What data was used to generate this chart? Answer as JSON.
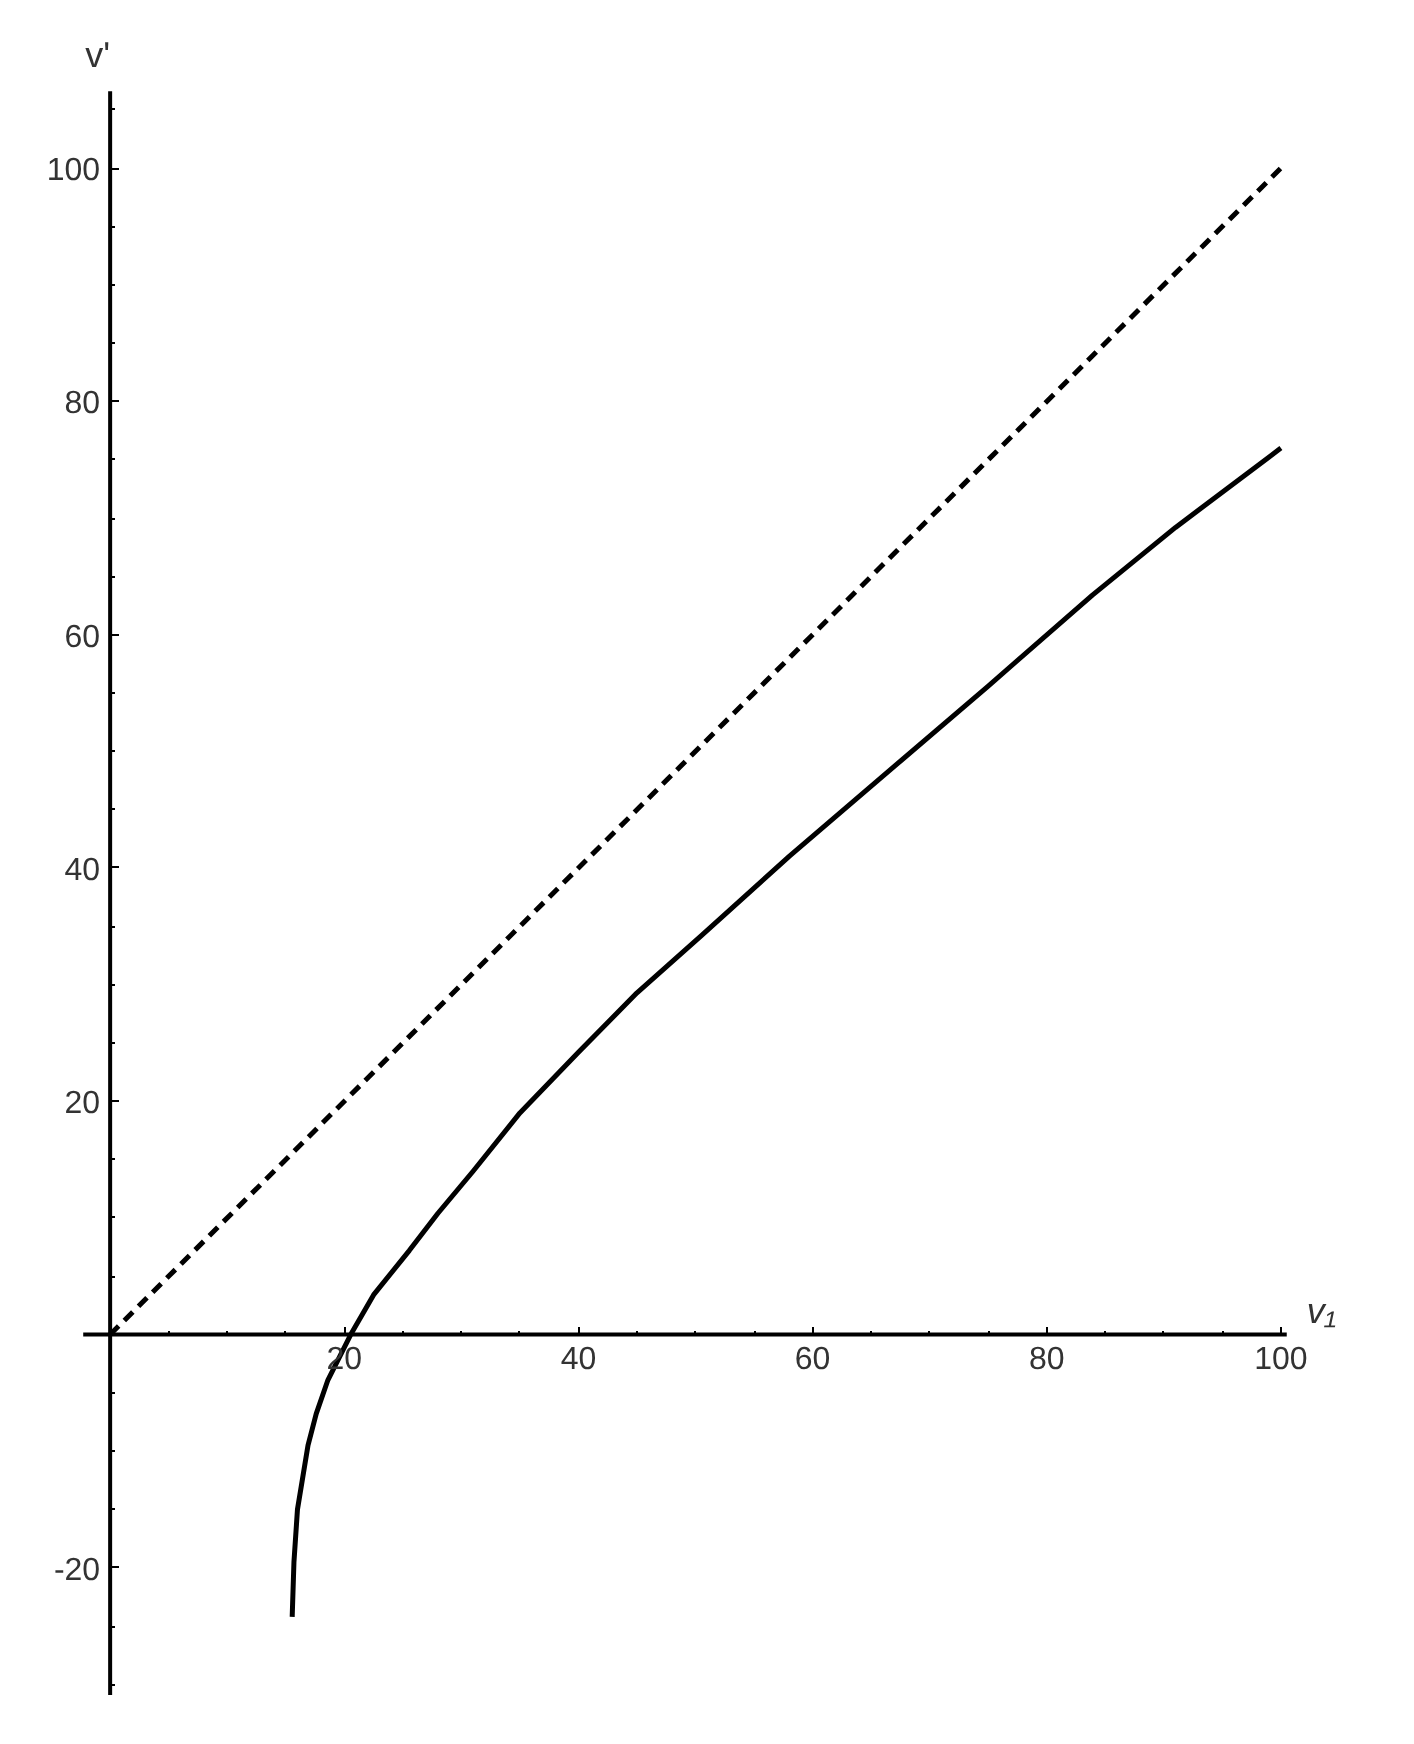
{
  "chart_data": {
    "type": "line",
    "xlabel": "v₁",
    "ylabel": "v'",
    "xlim": [
      -2.3,
      100.5
    ],
    "ylim": [
      -30.9,
      106.6
    ],
    "xticks": [
      {
        "value": 5,
        "label": null
      },
      {
        "value": 10,
        "label": null
      },
      {
        "value": 15,
        "label": null
      },
      20,
      {
        "value": 25,
        "label": null
      },
      {
        "value": 30,
        "label": null
      },
      {
        "value": 35,
        "label": null
      },
      40,
      {
        "value": 45,
        "label": null
      },
      {
        "value": 50,
        "label": null
      },
      {
        "value": 55,
        "label": null
      },
      60,
      {
        "value": 65,
        "label": null
      },
      {
        "value": 70,
        "label": null
      },
      {
        "value": 75,
        "label": null
      },
      80,
      {
        "value": 85,
        "label": null
      },
      {
        "value": 90,
        "label": null
      },
      {
        "value": 95,
        "label": null
      },
      100
    ],
    "yticks": [
      {
        "value": -30,
        "label": null
      },
      {
        "value": -25,
        "label": null
      },
      -20,
      {
        "value": -15,
        "label": null
      },
      {
        "value": -10,
        "label": null
      },
      {
        "value": -5,
        "label": null
      },
      {
        "value": 5,
        "label": null
      },
      {
        "value": 10,
        "label": null
      },
      {
        "value": 15,
        "label": null
      },
      20,
      {
        "value": 25,
        "label": null
      },
      {
        "value": 30,
        "label": null
      },
      {
        "value": 35,
        "label": null
      },
      40,
      {
        "value": 45,
        "label": null
      },
      {
        "value": 50,
        "label": null
      },
      {
        "value": 55,
        "label": null
      },
      60,
      {
        "value": 65,
        "label": null
      },
      {
        "value": 70,
        "label": null
      },
      {
        "value": 75,
        "label": null
      },
      80,
      {
        "value": 85,
        "label": null
      },
      {
        "value": 90,
        "label": null
      },
      {
        "value": 95,
        "label": null
      },
      100,
      {
        "value": 105,
        "label": null
      }
    ],
    "grid": false,
    "marker": "none",
    "series": [
      {
        "color": "#000000",
        "line_style": "dashed",
        "x": [
          0,
          100
        ],
        "values": [
          0,
          100
        ]
      },
      {
        "color": "#000000",
        "line_style": "solid",
        "x": [
          15.55,
          15.7,
          16.0,
          16.9,
          17.6,
          18.6,
          20.55,
          22.5,
          25.55,
          28.0,
          31.0,
          35.0,
          40.0,
          45.0,
          50.5,
          58.0,
          67.2,
          75.0,
          83.9,
          91.0,
          100.0
        ],
        "values": [
          -24.2,
          -19.5,
          -15.0,
          -9.5,
          -6.8,
          -3.9,
          0,
          3.4,
          7.2,
          10.4,
          14.0,
          19.0,
          24.2,
          29.3,
          34.2,
          41.0,
          48.9,
          55.6,
          63.4,
          69.2,
          76.0
        ]
      }
    ]
  }
}
